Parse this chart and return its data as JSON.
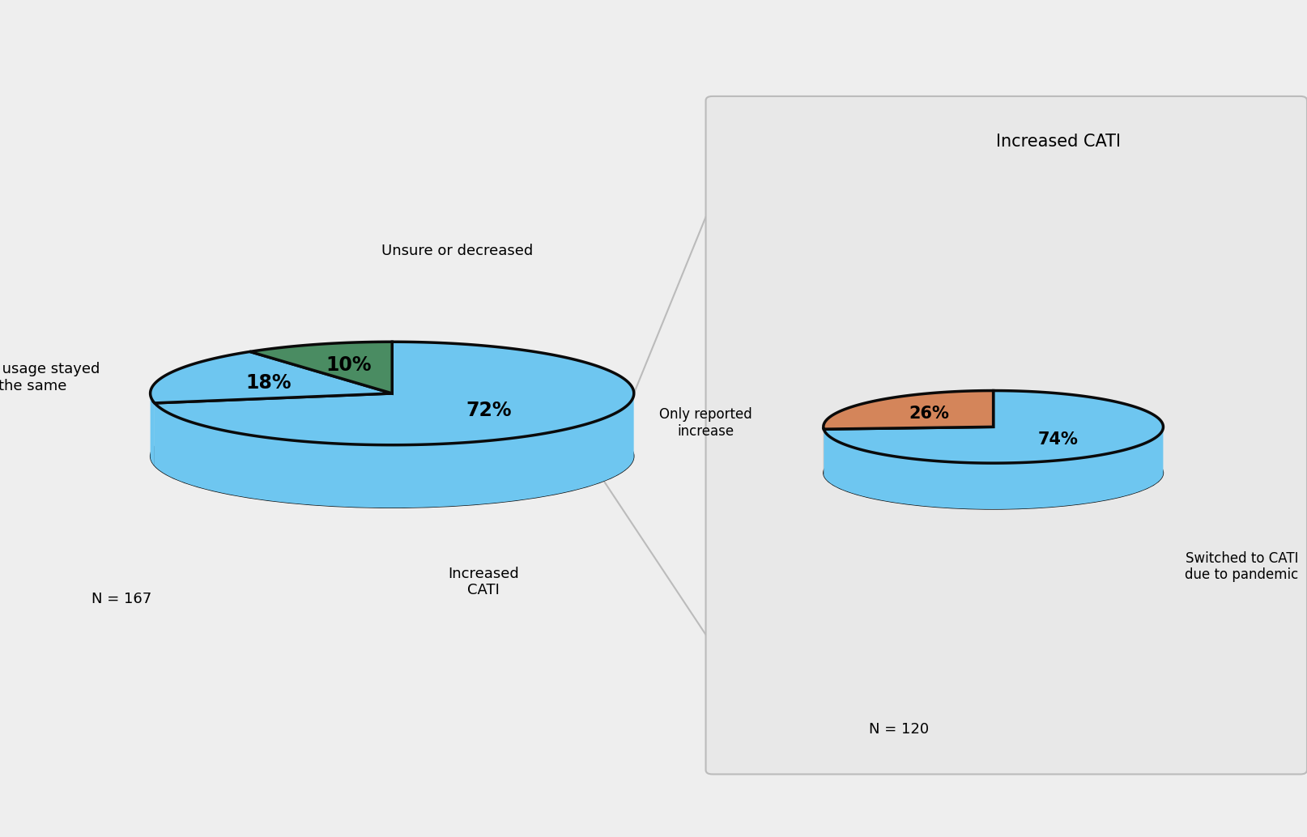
{
  "bg_color": "#eeeeee",
  "pie1": {
    "values": [
      72,
      18,
      10
    ],
    "colors": [
      "#6ec6f0",
      "#6ec6f0",
      "#4a8c62"
    ],
    "pct_labels": [
      "72%",
      "18%",
      "10%"
    ],
    "n_label": "N = 167",
    "label_increased": "Increased\nCATI",
    "label_stayed": "CATI usage stayed\nthe same",
    "label_unsure": "Unsure or decreased"
  },
  "pie2": {
    "values": [
      74,
      26
    ],
    "colors": [
      "#6ec6f0",
      "#d4855a"
    ],
    "pct_labels": [
      "74%",
      "26%"
    ],
    "n_label": "N = 120",
    "title": "Increased CATI",
    "label_switched": "Switched to CATI\ndue to pandemic",
    "label_only": "Only reported\nincrease"
  },
  "shadow_color": "#0a0a0a",
  "side_color": "#111111",
  "box_color": "#e8e8e8",
  "box_edge_color": "#bbbbbb",
  "connector_color": "#bbbbbb"
}
